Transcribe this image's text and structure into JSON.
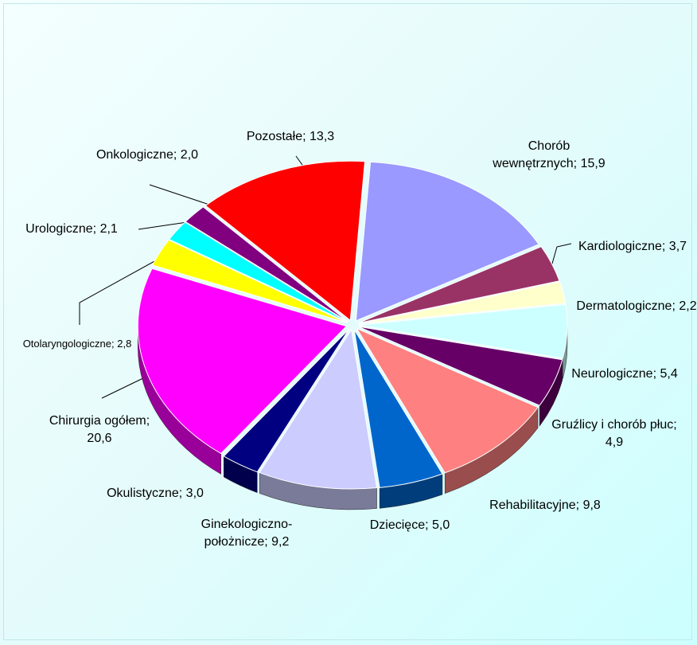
{
  "chart_data": {
    "type": "pie",
    "categories": [
      "Chorób wewnętrznych",
      "Kardiologiczne",
      "Dermatologiczne",
      "Neurologiczne",
      "Gruźlicy i chorób płuc",
      "Rehabilitacyjne",
      "Dziecięce",
      "Ginekologiczno-położnicze",
      "Okulistyczne",
      "Chirurgia ogółem",
      "Otolaryngologiczne",
      "Urologiczne",
      "Onkologiczne",
      "Pozostałe"
    ],
    "values": [
      15.9,
      3.7,
      2.2,
      5.4,
      4.9,
      9.8,
      5.0,
      9.2,
      3.0,
      20.6,
      2.8,
      2.1,
      2.0,
      13.3
    ],
    "value_labels": [
      "15,9",
      "3,7",
      "2,2",
      "5,4",
      "4,9",
      "9,8",
      "5,0",
      "9,2",
      "3,0",
      "20,6",
      "2,8",
      "2,1",
      "2,0",
      "13,3"
    ],
    "label_separator": ";",
    "colors": [
      "#9999ff",
      "#993366",
      "#ffffcc",
      "#ccffff",
      "#660066",
      "#ff8080",
      "#0066cc",
      "#ccccff",
      "#000080",
      "#ff00ff",
      "#ffff00",
      "#00ffff",
      "#800080",
      "#ff0000"
    ]
  }
}
